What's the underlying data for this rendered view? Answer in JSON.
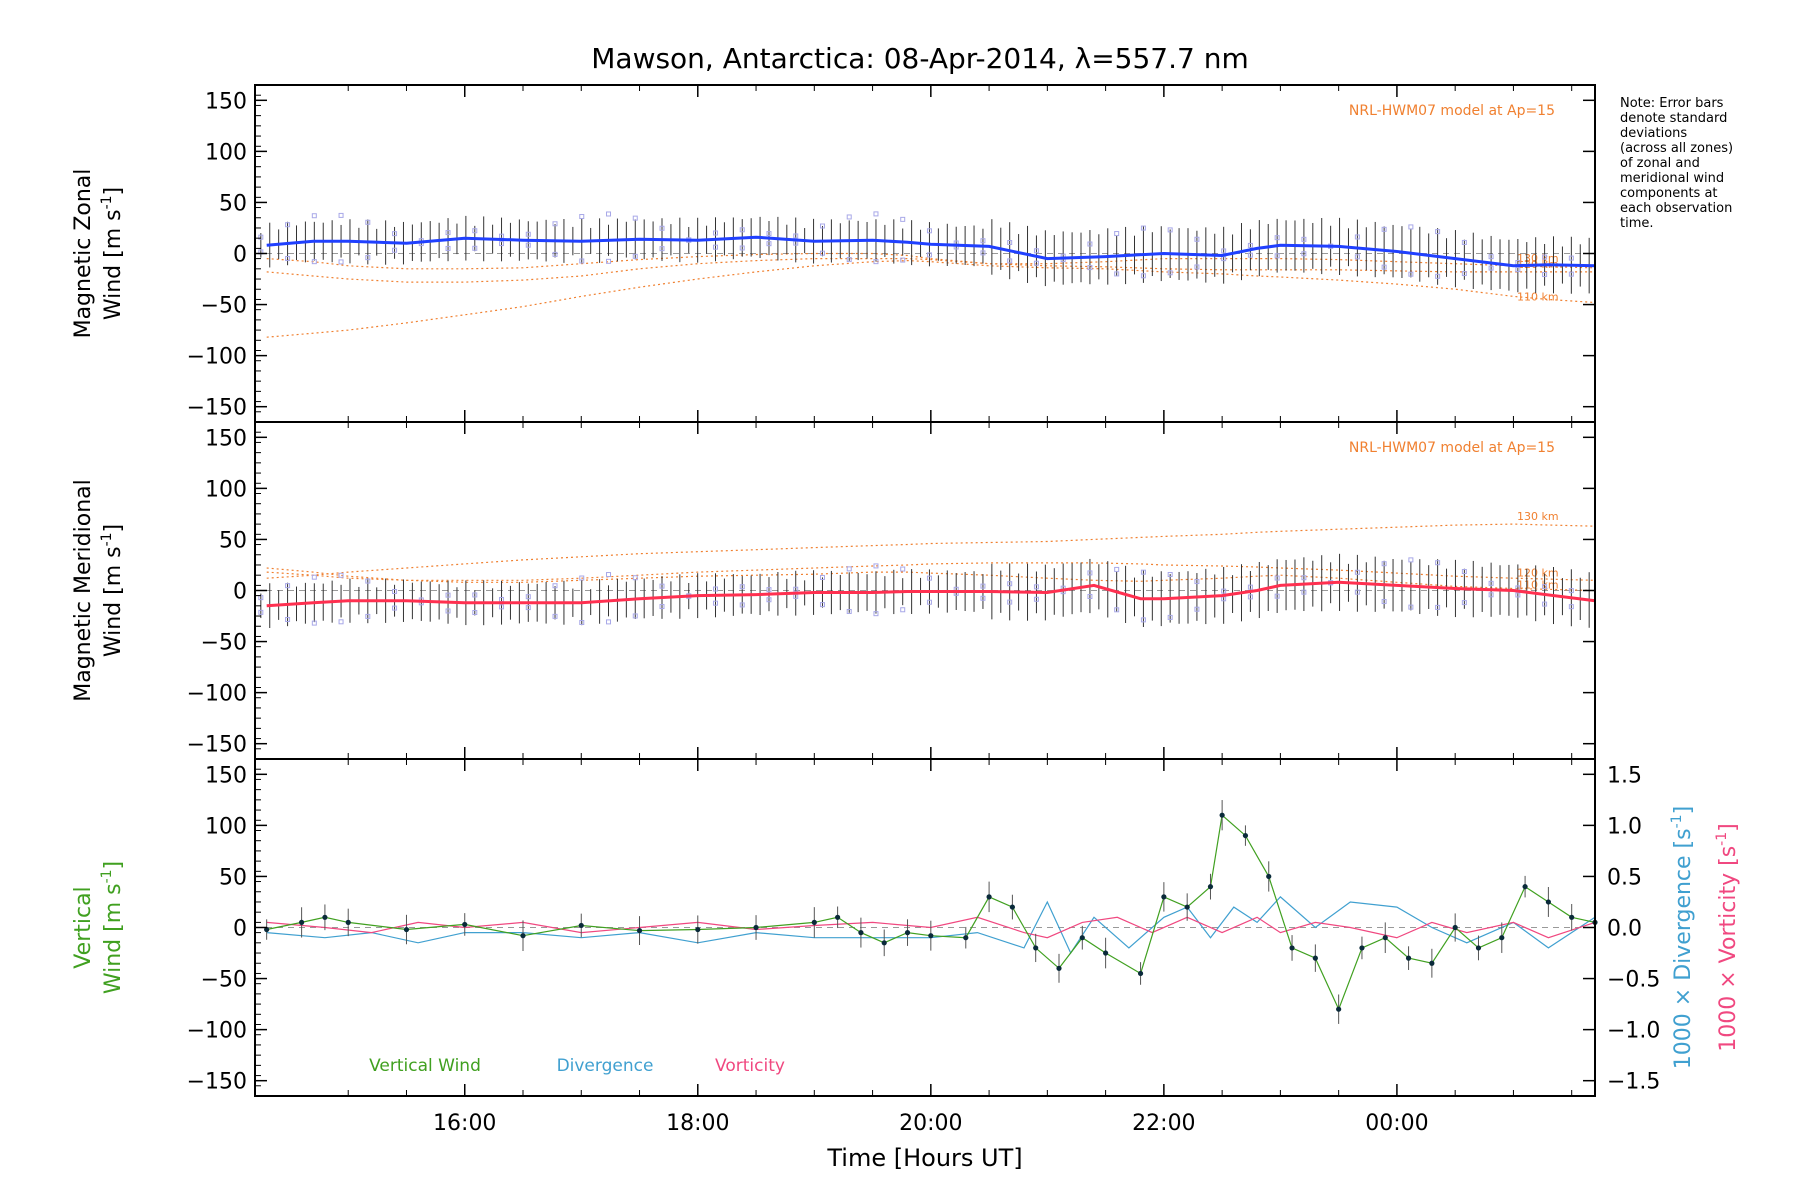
{
  "title": "Mawson, Antarctica: 08-Apr-2014, λ=557.7 nm",
  "note_lines": [
    "Note: Error bars",
    "denote standard",
    "deviations",
    "(across all zones)",
    "of zonal and",
    "meridional wind",
    "components at",
    "each observation",
    "time."
  ],
  "colors": {
    "zonal": "#2040ff",
    "meridional": "#ff3050",
    "model": "#f08030",
    "vertical": "#40a020",
    "divergence": "#40a0d0",
    "vorticity": "#f04880",
    "zone_box": "#a8a8e8"
  },
  "chart_data": [
    {
      "type": "line",
      "panel": "zonal",
      "ylabel_line1": "Magnetic Zonal",
      "ylabel_line2": "Wind [m s",
      "ylabel_sup": "-1",
      "ylabel_close": "]",
      "ylim": [
        -165,
        165
      ],
      "yticks": [
        150,
        100,
        50,
        0,
        -50,
        -100,
        -150
      ],
      "model_label": "NRL-HWM07 model at Ap=15",
      "model_curve_labels": [
        "130 km",
        "120 km",
        "110 km"
      ],
      "x": [
        14.3,
        14.7,
        15.0,
        15.5,
        16.0,
        16.5,
        17.0,
        17.5,
        18.0,
        18.5,
        19.0,
        19.5,
        19.8,
        20.0,
        20.5,
        21.0,
        21.5,
        22.0,
        22.5,
        22.8,
        23.0,
        23.5,
        24.0,
        24.5,
        25.0,
        25.3,
        25.7
      ],
      "series": [
        {
          "values": [
            8,
            12,
            12,
            10,
            15,
            13,
            12,
            14,
            13,
            16,
            12,
            13,
            11,
            9,
            7,
            -5,
            -3,
            0,
            -2,
            5,
            8,
            7,
            2,
            -5,
            -12,
            -11,
            -12
          ]
        }
      ],
      "model_curves": [
        {
          "values": [
            -5,
            -8,
            -12,
            -15,
            -15,
            -14,
            -10,
            -6,
            -3,
            -1,
            0,
            0,
            -2,
            -5,
            -10,
            -10,
            -8,
            -5,
            -5,
            -5,
            -5,
            -6,
            -8,
            -10,
            -12,
            -13,
            -14
          ]
        },
        {
          "values": [
            -18,
            -22,
            -25,
            -28,
            -28,
            -26,
            -22,
            -15,
            -10,
            -7,
            -5,
            -5,
            -5,
            -6,
            -10,
            -12,
            -13,
            -15,
            -16,
            -16,
            -16,
            -16,
            -17,
            -18,
            -18,
            -18,
            -18
          ]
        },
        {
          "values": [
            -82,
            -78,
            -75,
            -68,
            -60,
            -52,
            -42,
            -33,
            -25,
            -18,
            -12,
            -8,
            -7,
            -8,
            -12,
            -14,
            -15,
            -18,
            -20,
            -22,
            -23,
            -26,
            -30,
            -35,
            -42,
            -45,
            -48
          ]
        }
      ]
    },
    {
      "type": "line",
      "panel": "meridional",
      "ylabel_line1": "Magnetic Meridional",
      "ylabel_line2": "Wind [m s",
      "ylabel_sup": "-1",
      "ylabel_close": "]",
      "ylim": [
        -165,
        165
      ],
      "yticks": [
        150,
        100,
        50,
        0,
        -50,
        -100,
        -150
      ],
      "model_label": "NRL-HWM07 model at Ap=15",
      "model_curve_labels": [
        "130 km",
        "120 km",
        "110 km"
      ],
      "x": [
        14.3,
        14.7,
        15.0,
        15.5,
        16.0,
        16.5,
        17.0,
        17.5,
        18.0,
        18.5,
        19.0,
        19.5,
        19.8,
        20.0,
        20.5,
        21.0,
        21.4,
        21.8,
        22.0,
        22.5,
        22.8,
        23.0,
        23.5,
        24.0,
        24.5,
        25.0,
        25.7
      ],
      "series": [
        {
          "values": [
            -15,
            -12,
            -10,
            -10,
            -12,
            -12,
            -12,
            -8,
            -5,
            -4,
            -2,
            -2,
            -1,
            -1,
            -1,
            -2,
            5,
            -8,
            -8,
            -5,
            0,
            5,
            8,
            5,
            2,
            0,
            -10
          ]
        }
      ],
      "model_curves": [
        {
          "values": [
            12,
            15,
            18,
            22,
            26,
            30,
            33,
            36,
            38,
            40,
            42,
            44,
            45,
            46,
            47,
            48,
            50,
            52,
            53,
            55,
            57,
            58,
            60,
            62,
            64,
            65,
            63
          ]
        },
        {
          "values": [
            18,
            15,
            12,
            10,
            10,
            10,
            12,
            15,
            18,
            20,
            22,
            24,
            25,
            26,
            27,
            27,
            27,
            26,
            25,
            24,
            23,
            22,
            20,
            17,
            14,
            12,
            10
          ]
        },
        {
          "values": [
            22,
            18,
            14,
            10,
            8,
            8,
            10,
            12,
            14,
            15,
            16,
            18,
            18,
            17,
            15,
            12,
            10,
            9,
            10,
            12,
            14,
            15,
            12,
            8,
            4,
            2,
            0
          ]
        }
      ]
    },
    {
      "type": "line",
      "panel": "vertical",
      "ylabel_line1": "Vertical",
      "ylabel_line2": "Wind [m s",
      "ylabel_sup": "-1",
      "ylabel_close": "]",
      "ylim": [
        -165,
        165
      ],
      "yticks": [
        150,
        100,
        50,
        0,
        -50,
        -100,
        -150
      ],
      "y2lim": [
        -1.65,
        1.65
      ],
      "y2ticks": [
        "1.5",
        "1.0",
        "0.5",
        "0.0",
        "−0.5",
        "−1.0",
        "−1.5"
      ],
      "y2label_div": "1000 × Divergence [s",
      "y2label_vor": "1000 × Vorticity [s",
      "y2label_sup": "-1",
      "y2label_close": "]",
      "legend": [
        "Vertical Wind",
        "Divergence",
        "Vorticity"
      ],
      "xlabel": "Time [Hours UT]",
      "xticks": [
        "16:00",
        "18:00",
        "20:00",
        "22:00",
        "00:00"
      ],
      "xtick_values": [
        16,
        18,
        20,
        22,
        24
      ],
      "xlim": [
        14.2,
        25.7
      ],
      "series": [
        {
          "name": "Vertical Wind",
          "x": [
            14.3,
            14.6,
            14.8,
            15.0,
            15.5,
            16.0,
            16.5,
            17.0,
            17.5,
            18.0,
            18.5,
            19.0,
            19.2,
            19.4,
            19.6,
            19.8,
            20.0,
            20.3,
            20.5,
            20.7,
            20.9,
            21.1,
            21.3,
            21.5,
            21.8,
            22.0,
            22.2,
            22.4,
            22.5,
            22.7,
            22.9,
            23.1,
            23.3,
            23.5,
            23.7,
            23.9,
            24.1,
            24.3,
            24.5,
            24.7,
            24.9,
            25.1,
            25.3,
            25.5,
            25.7
          ],
          "values": [
            -2,
            5,
            10,
            5,
            -2,
            3,
            -8,
            2,
            -3,
            -2,
            0,
            5,
            10,
            -5,
            -15,
            -5,
            -8,
            -10,
            30,
            20,
            -20,
            -40,
            -10,
            -25,
            -45,
            30,
            20,
            40,
            110,
            90,
            50,
            -20,
            -30,
            -80,
            -20,
            -10,
            -30,
            -35,
            0,
            -20,
            -10,
            40,
            25,
            10,
            5
          ]
        },
        {
          "name": "Divergence",
          "x": [
            14.3,
            14.8,
            15.2,
            15.6,
            16.0,
            16.5,
            17.0,
            17.5,
            18.0,
            18.5,
            19.0,
            19.5,
            20.0,
            20.4,
            20.8,
            21.0,
            21.2,
            21.4,
            21.7,
            22.0,
            22.2,
            22.4,
            22.6,
            22.8,
            23.0,
            23.3,
            23.6,
            24.0,
            24.3,
            24.6,
            25.0,
            25.3,
            25.7
          ],
          "values": [
            -0.05,
            -0.1,
            -0.05,
            -0.15,
            -0.05,
            -0.05,
            -0.1,
            -0.05,
            -0.15,
            -0.05,
            -0.1,
            -0.1,
            -0.1,
            -0.05,
            -0.2,
            0.25,
            -0.25,
            0.1,
            -0.2,
            0.1,
            0.2,
            -0.1,
            0.2,
            0.05,
            0.3,
            0.0,
            0.25,
            0.2,
            0.0,
            -0.15,
            0.05,
            -0.2,
            0.1
          ]
        },
        {
          "name": "Vorticity",
          "x": [
            14.3,
            14.8,
            15.2,
            15.6,
            16.0,
            16.5,
            17.0,
            17.5,
            18.0,
            18.5,
            19.0,
            19.5,
            20.0,
            20.4,
            20.8,
            21.0,
            21.3,
            21.6,
            21.9,
            22.2,
            22.5,
            22.8,
            23.0,
            23.3,
            23.6,
            24.0,
            24.3,
            24.6,
            25.0,
            25.3,
            25.7
          ],
          "values": [
            0.05,
            0.0,
            -0.05,
            0.05,
            0.0,
            0.05,
            -0.05,
            0.0,
            0.05,
            -0.02,
            0.02,
            0.05,
            0.0,
            0.1,
            -0.05,
            -0.1,
            0.05,
            0.1,
            -0.05,
            0.1,
            -0.05,
            0.1,
            -0.05,
            0.05,
            0.0,
            -0.1,
            0.05,
            -0.05,
            0.05,
            -0.1,
            0.05
          ]
        }
      ]
    }
  ]
}
